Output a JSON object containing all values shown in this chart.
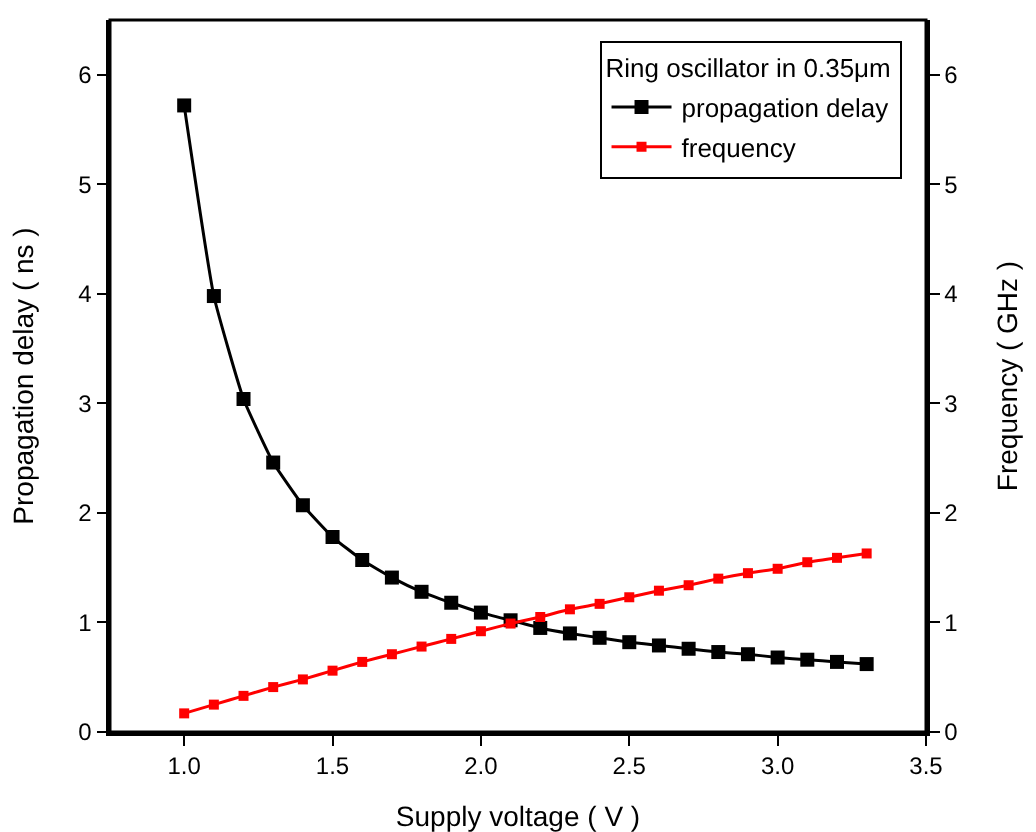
{
  "chart_data": {
    "type": "line",
    "xlabel": "Supply voltage ( V )",
    "ylabel": "Propagation delay ( ns )",
    "y2label": "Frequency ( GHz )",
    "legend_title": "Ring oscillator in 0.35μm",
    "legend": "top right",
    "marker": "square",
    "line_style": "solid",
    "grid": false,
    "x": [
      1.0,
      1.1,
      1.2,
      1.3,
      1.4,
      1.5,
      1.6,
      1.7,
      1.8,
      1.9,
      2.0,
      2.1,
      2.2,
      2.3,
      2.4,
      2.5,
      2.6,
      2.7,
      2.8,
      2.9,
      3.0,
      3.1,
      3.2,
      3.3
    ],
    "xlim": [
      0.75,
      3.5
    ],
    "xticks": [
      {
        "value": 1,
        "label": "1.0"
      },
      1.5,
      {
        "value": 2,
        "label": "2.0"
      },
      2.5,
      {
        "value": 3,
        "label": "3.0"
      },
      3.5
    ],
    "ylim": [
      0,
      6.5
    ],
    "yticks": [
      0,
      1,
      2,
      3,
      4,
      5,
      6
    ],
    "y2lim": [
      0,
      6.5
    ],
    "y2ticks": [
      0,
      1,
      2,
      3,
      4,
      5,
      6
    ],
    "series": [
      {
        "name": "propagation delay",
        "color": "#000000",
        "values": [
          5.72,
          3.98,
          3.04,
          2.46,
          2.07,
          1.78,
          1.57,
          1.41,
          1.28,
          1.18,
          1.09,
          1.02,
          0.95,
          0.9,
          0.86,
          0.82,
          0.79,
          0.76,
          0.73,
          0.71,
          0.68,
          0.66,
          0.64,
          0.62
        ]
      },
      {
        "name": "frequency",
        "color": "#ff0000",
        "axis": "y2",
        "values": [
          0.17,
          0.25,
          0.33,
          0.41,
          0.48,
          0.56,
          0.64,
          0.71,
          0.78,
          0.85,
          0.92,
          0.99,
          1.05,
          1.12,
          1.17,
          1.23,
          1.29,
          1.34,
          1.4,
          1.45,
          1.49,
          1.55,
          1.59,
          1.63
        ]
      }
    ]
  }
}
